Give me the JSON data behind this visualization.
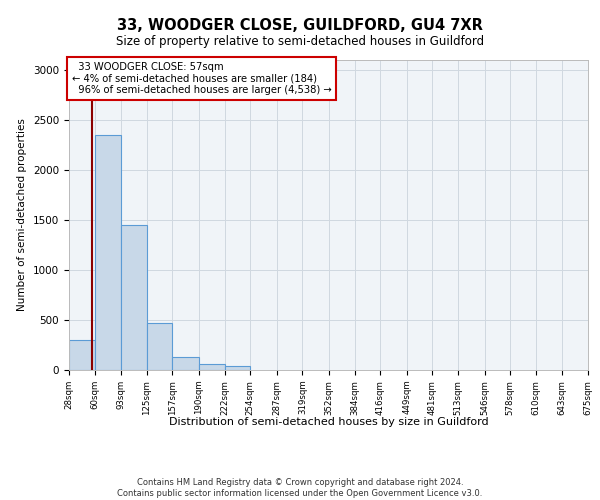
{
  "title_main": "33, WOODGER CLOSE, GUILDFORD, GU4 7XR",
  "title_sub": "Size of property relative to semi-detached houses in Guildford",
  "xlabel": "Distribution of semi-detached houses by size in Guildford",
  "ylabel": "Number of semi-detached properties",
  "footer": "Contains HM Land Registry data © Crown copyright and database right 2024.\nContains public sector information licensed under the Open Government Licence v3.0.",
  "bin_edges": [
    28,
    60,
    93,
    125,
    157,
    190,
    222,
    254,
    287,
    319,
    352,
    384,
    416,
    449,
    481,
    513,
    546,
    578,
    610,
    643,
    675
  ],
  "bar_heights": [
    300,
    2350,
    1450,
    470,
    130,
    60,
    45,
    0,
    0,
    0,
    0,
    0,
    0,
    0,
    0,
    0,
    0,
    0,
    0,
    0
  ],
  "bar_color": "#c8d8e8",
  "bar_edge_color": "#5b9bd5",
  "property_size": 57,
  "property_label": "33 WOODGER CLOSE: 57sqm",
  "pct_smaller": "4%",
  "pct_smaller_count": 184,
  "pct_larger": "96%",
  "pct_larger_count": 4538,
  "vline_color": "#8b0000",
  "annotation_box_color": "#cc0000",
  "ylim": [
    0,
    3100
  ],
  "yticks": [
    0,
    500,
    1000,
    1500,
    2000,
    2500,
    3000
  ],
  "grid_color": "#d0d8e0",
  "background_color": "#f0f4f8"
}
